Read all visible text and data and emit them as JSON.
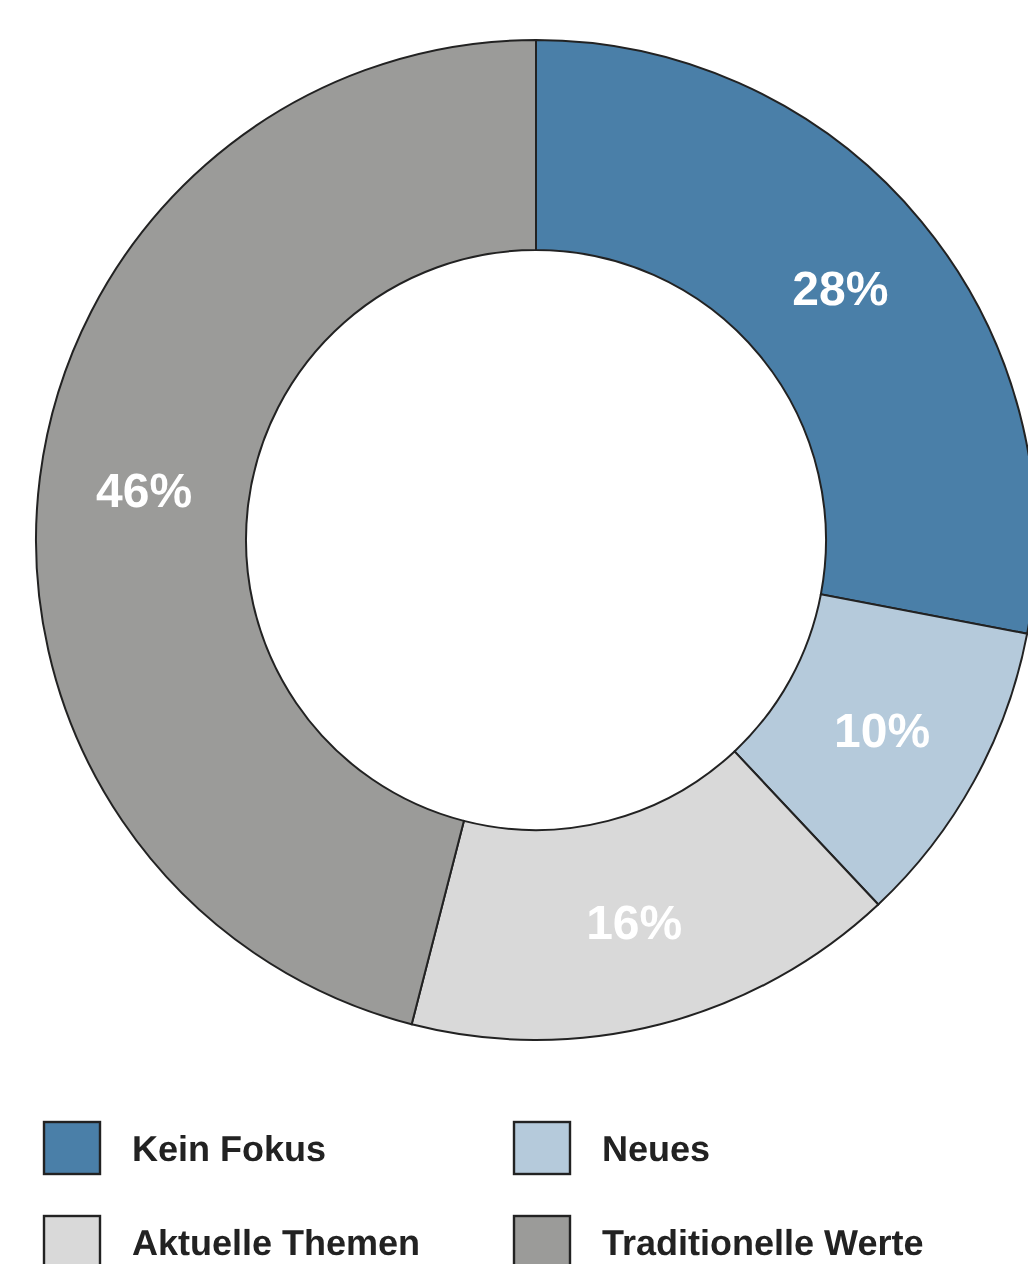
{
  "chart_data": {
    "type": "donut",
    "categories": [
      "Kein Fokus",
      "Neues",
      "Aktuelle Themen",
      "Traditionelle Werte"
    ],
    "values": [
      28,
      10,
      16,
      46
    ],
    "colors": [
      "#4a7fa8",
      "#b5cadb",
      "#d9d9d9",
      "#9b9b99"
    ],
    "value_labels": [
      "28%",
      "10%",
      "16%",
      "46%"
    ],
    "legend": "bottom"
  }
}
